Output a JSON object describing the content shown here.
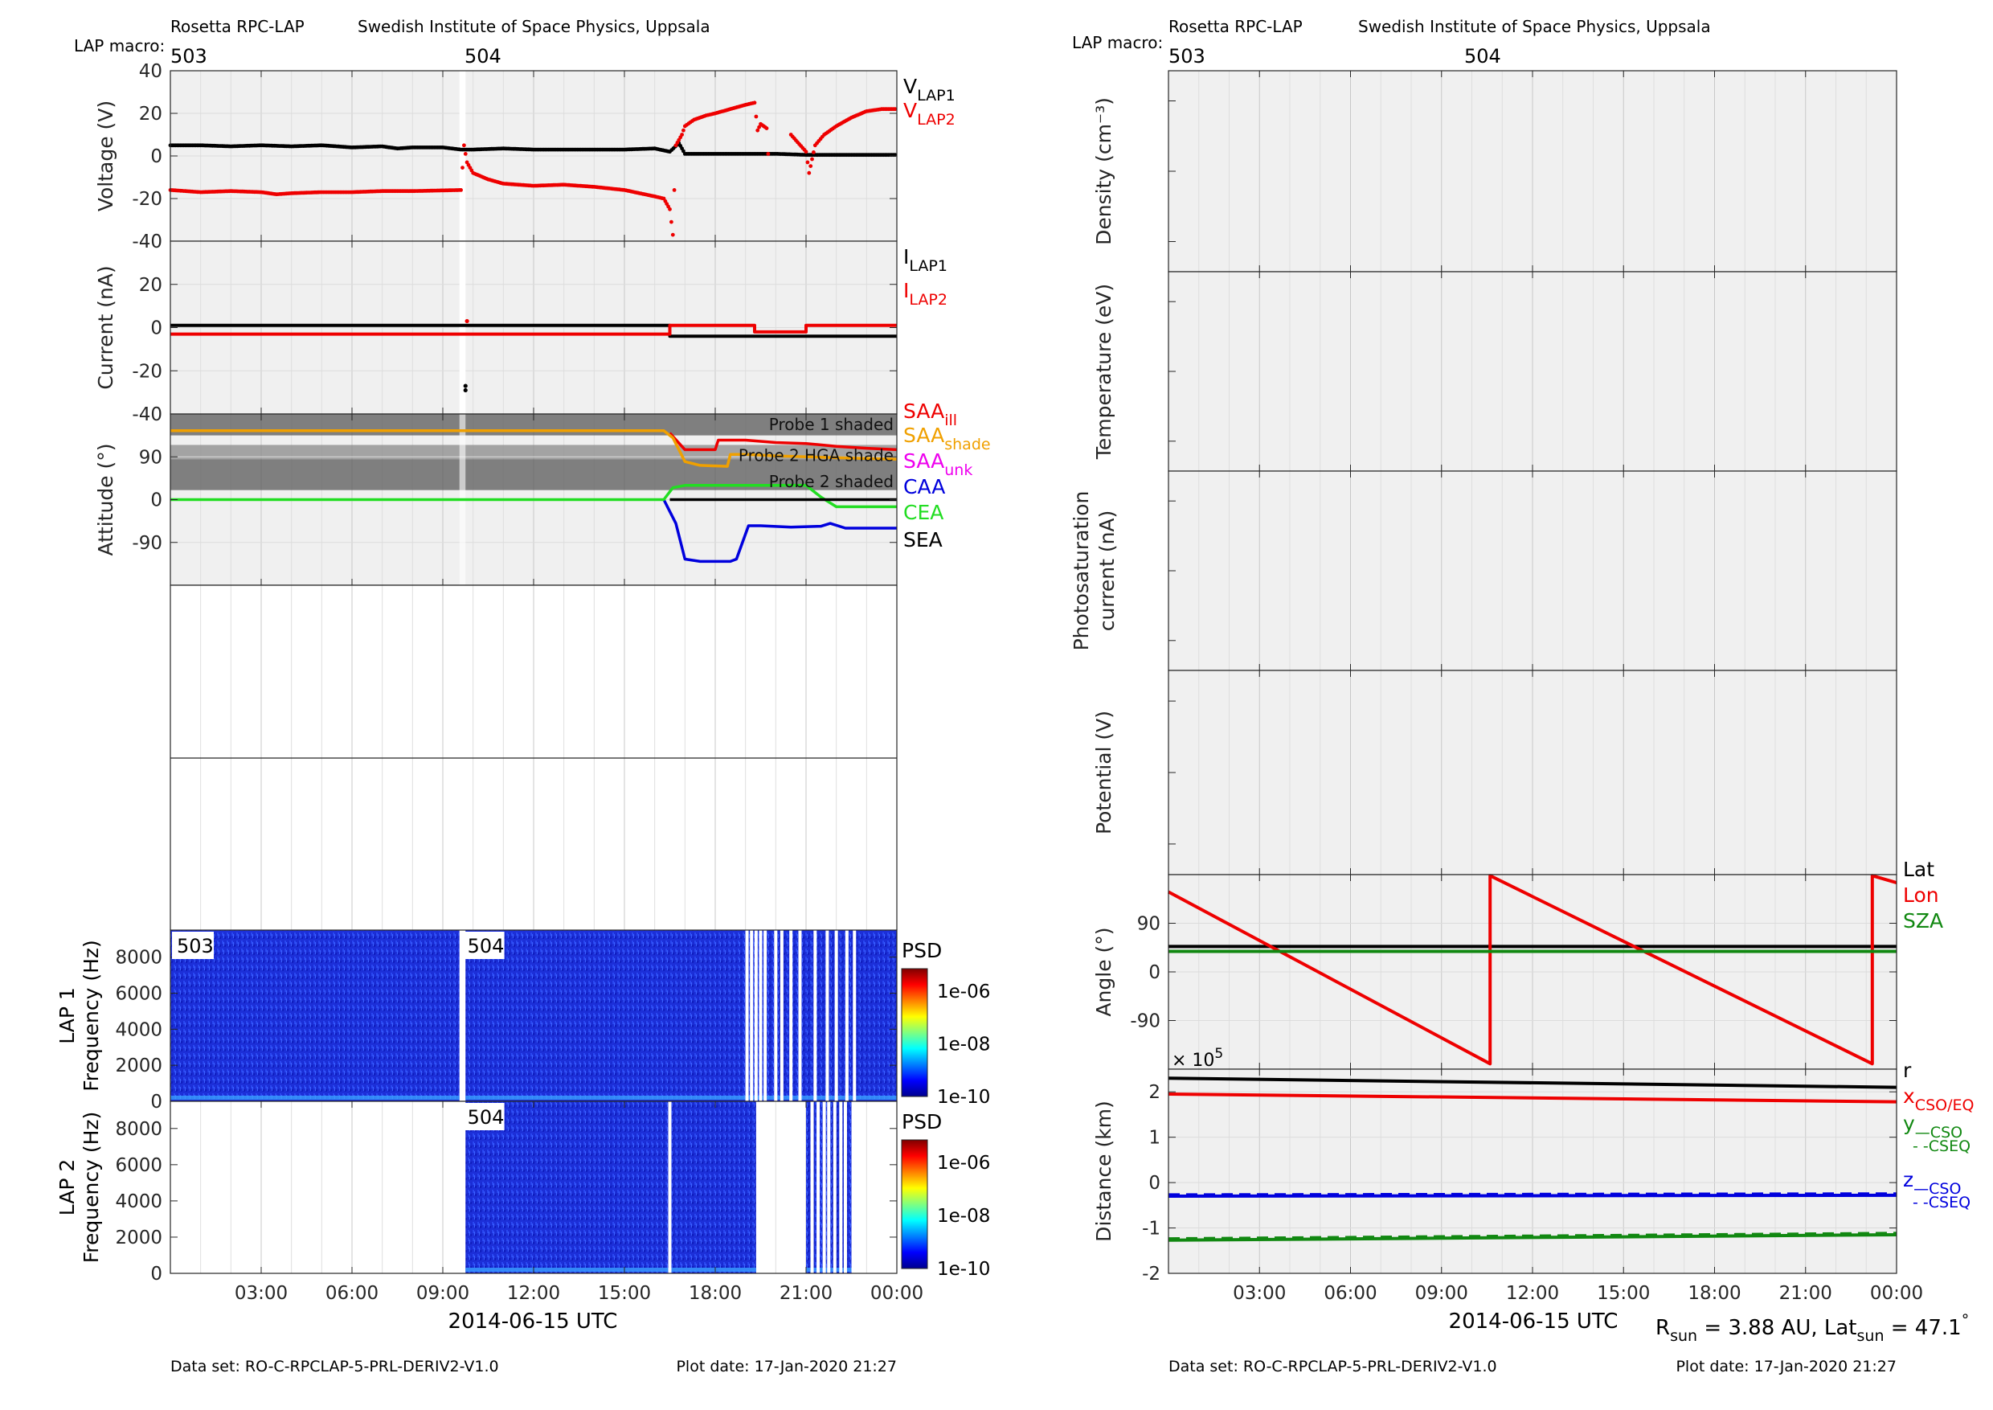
{
  "left": {
    "header": {
      "instrument": "Rosetta RPC-LAP",
      "institute": "Swedish Institute of Space Physics, Uppsala",
      "macro_label": "LAP macro:"
    },
    "macros": [
      {
        "id": "503",
        "t": 0.0
      },
      {
        "id": "504",
        "t": 9.6
      }
    ],
    "xlabel": "2014-06-15 UTC",
    "dataset": "Data set: RO-C-RPCLAP-5-PRL-DERIV2-V1.0",
    "plot_date": "Plot date: 17-Jan-2020 21:27"
  },
  "right": {
    "header": {
      "instrument": "Rosetta RPC-LAP",
      "institute": "Swedish Institute of Space Physics, Uppsala",
      "macro_label": "LAP macro:"
    },
    "macros": [
      {
        "id": "503",
        "t": 0.0
      },
      {
        "id": "504",
        "t": 9.6
      }
    ],
    "xlabel": "2014-06-15 UTC",
    "dataset": "Data set: RO-C-RPCLAP-5-PRL-DERIV2-V1.0",
    "plot_date": "Plot date: 17-Jan-2020 21:27",
    "footer_note": {
      "r_base": "R",
      "r_sub": "sun",
      "r_val": " = 3.88 AU, Lat",
      "lat_sub": "sun",
      "lat_val": " = 47.1",
      "deg": "°"
    }
  },
  "chart_data": [
    {
      "type": "scatter",
      "name_key": "voltage",
      "ylabel": "Voltage (V)",
      "ylim": [
        -40,
        40
      ],
      "yticks": [
        -40,
        -20,
        0,
        20,
        40
      ],
      "xlim": [
        0,
        24
      ],
      "xticks": [
        3,
        6,
        9,
        12,
        15,
        18,
        21,
        24
      ],
      "xticklabels": [
        "03:00",
        "06:00",
        "09:00",
        "12:00",
        "15:00",
        "18:00",
        "21:00",
        "00:00"
      ],
      "grid": true,
      "series": [
        {
          "name": "VLAP1",
          "label_base": "V",
          "label_sub": "LAP1",
          "color": "#000000",
          "points": [
            [
              0,
              5
            ],
            [
              1,
              5
            ],
            [
              2,
              4.5
            ],
            [
              3,
              5
            ],
            [
              4,
              4.5
            ],
            [
              5,
              5
            ],
            [
              6,
              4
            ],
            [
              7,
              4.5
            ],
            [
              7.5,
              3.5
            ],
            [
              8,
              4
            ],
            [
              9,
              4
            ],
            [
              9.6,
              3
            ],
            [
              10,
              3
            ],
            [
              11,
              3.5
            ],
            [
              12,
              3
            ],
            [
              13,
              3
            ],
            [
              14,
              3
            ],
            [
              15,
              3
            ],
            [
              16,
              3.5
            ],
            [
              16.5,
              2
            ],
            [
              16.8,
              6
            ],
            [
              17,
              1
            ],
            [
              18,
              1
            ],
            [
              19,
              1
            ],
            [
              20,
              1
            ],
            [
              21,
              0.5
            ],
            [
              22,
              0.5
            ],
            [
              23,
              0.5
            ],
            [
              24,
              0.5
            ]
          ]
        },
        {
          "name": "VLAP2",
          "label_base": "V",
          "label_sub": "LAP2",
          "color": "#ee0000",
          "points": [
            [
              0,
              -16
            ],
            [
              1,
              -17
            ],
            [
              2,
              -16.5
            ],
            [
              3,
              -17
            ],
            [
              3.5,
              -18
            ],
            [
              4,
              -17.5
            ],
            [
              5,
              -17
            ],
            [
              6,
              -17
            ],
            [
              7,
              -16.5
            ],
            [
              8,
              -16.5
            ],
            [
              9.6,
              -16
            ],
            [
              9.7,
              5
            ],
            [
              9.8,
              -3
            ],
            [
              10,
              -8
            ],
            [
              10.5,
              -11
            ],
            [
              11,
              -13
            ],
            [
              12,
              -14
            ],
            [
              13,
              -13.5
            ],
            [
              14,
              -14.5
            ],
            [
              15,
              -16
            ],
            [
              16,
              -19
            ],
            [
              16.3,
              -20
            ],
            [
              16.5,
              -25
            ],
            [
              16.6,
              -37
            ],
            [
              16.7,
              5
            ],
            [
              16.9,
              10
            ],
            [
              17,
              14
            ],
            [
              17.3,
              17
            ],
            [
              17.7,
              19
            ],
            [
              18,
              20
            ],
            [
              18.5,
              22
            ],
            [
              19,
              24
            ],
            [
              19.3,
              25
            ],
            [
              19.4,
              12
            ],
            [
              19.5,
              15
            ],
            [
              19.6,
              14
            ],
            [
              19.7,
              13
            ],
            [
              19.8,
              -11
            ],
            [
              20.5,
              10
            ],
            [
              21,
              2
            ],
            [
              21.1,
              -8
            ],
            [
              21.3,
              5
            ],
            [
              21.6,
              10
            ],
            [
              22,
              14
            ],
            [
              22.5,
              18
            ],
            [
              23,
              21
            ],
            [
              23.5,
              22
            ],
            [
              24,
              22
            ]
          ]
        }
      ]
    },
    {
      "type": "line",
      "name_key": "current",
      "ylabel": "Current (nA)",
      "ylim": [
        -40,
        40
      ],
      "yticks": [
        -40,
        -20,
        0,
        20
      ],
      "xlim": [
        0,
        24
      ],
      "xticks": [
        3,
        6,
        9,
        12,
        15,
        18,
        21,
        24
      ],
      "grid": true,
      "series": [
        {
          "name": "ILAP1",
          "label_base": "I",
          "label_sub": "LAP1",
          "color": "#000000",
          "points": [
            [
              0,
              1
            ],
            [
              9.6,
              1
            ],
            [
              16.5,
              1
            ],
            [
              16.5,
              -4
            ],
            [
              24,
              -4
            ]
          ]
        },
        {
          "name": "ILAP2",
          "label_base": "I",
          "label_sub": "LAP2",
          "color": "#ee0000",
          "points": [
            [
              0,
              -3
            ],
            [
              9.6,
              -3
            ],
            [
              16.5,
              -3
            ],
            [
              16.5,
              1
            ],
            [
              19.3,
              1
            ],
            [
              19.3,
              -2
            ],
            [
              21,
              -2
            ],
            [
              21,
              1
            ],
            [
              24,
              1
            ]
          ]
        }
      ],
      "extra_points": [
        [
          9.75,
          -27
        ],
        [
          9.75,
          -29
        ],
        [
          9.8,
          3
        ]
      ]
    },
    {
      "type": "line",
      "name_key": "attitude",
      "ylabel": "Attitude (°)",
      "ylim": [
        -180,
        180
      ],
      "yticks": [
        -90,
        0,
        90
      ],
      "xlim": [
        0,
        24
      ],
      "xticks": [
        3,
        6,
        9,
        12,
        15,
        18,
        21,
        24
      ],
      "grid": true,
      "bands": [
        {
          "label": "Probe 1 shaded",
          "y0": 135,
          "y1": 180,
          "color": "#5a5a5a"
        },
        {
          "label": "Probe 2 HGA shade",
          "y0": 85,
          "y1": 115,
          "color": "#8a8a8a"
        },
        {
          "label": "Probe 2 shaded",
          "y0": 20,
          "y1": 85,
          "color": "#5a5a5a"
        }
      ],
      "series": [
        {
          "name": "SAAill",
          "label_base": "SAA",
          "label_sub": "ill",
          "color": "#ee0000",
          "points": [
            [
              16.5,
              140
            ],
            [
              17,
              105
            ],
            [
              18,
              105
            ],
            [
              18.1,
              125
            ],
            [
              19,
              125
            ],
            [
              20,
              120
            ],
            [
              21,
              118
            ],
            [
              22,
              112
            ],
            [
              23,
              108
            ],
            [
              24,
              105
            ]
          ]
        },
        {
          "name": "SAAshade",
          "label_base": "SAA",
          "label_sub": "shade",
          "color": "#f0a000",
          "points": [
            [
              0,
              145
            ],
            [
              16.3,
              145
            ],
            [
              16.6,
              130
            ],
            [
              17,
              80
            ],
            [
              17.5,
              72
            ],
            [
              18.4,
              70
            ],
            [
              18.5,
              95
            ],
            [
              19,
              95
            ],
            [
              20,
              92
            ],
            [
              22,
              88
            ],
            [
              24,
              85
            ]
          ]
        },
        {
          "name": "SAAunk",
          "label_base": "SAA",
          "label_sub": "unk",
          "color": "#ee00ee",
          "points": []
        },
        {
          "name": "CAA",
          "label_base": "CAA",
          "label_sub": "",
          "color": "#0000dd",
          "points": [
            [
              16.3,
              0
            ],
            [
              16.7,
              -50
            ],
            [
              17,
              -125
            ],
            [
              17.5,
              -130
            ],
            [
              18.5,
              -130
            ],
            [
              18.7,
              -125
            ],
            [
              19.1,
              -55
            ],
            [
              19.5,
              -55
            ],
            [
              20.5,
              -58
            ],
            [
              21.5,
              -56
            ],
            [
              21.8,
              -50
            ],
            [
              22.3,
              -60
            ],
            [
              24,
              -60
            ]
          ]
        },
        {
          "name": "CEA",
          "label_base": "CEA",
          "label_sub": "",
          "color": "#22dd22",
          "points": [
            [
              0,
              0
            ],
            [
              16.3,
              0
            ],
            [
              16.6,
              25
            ],
            [
              17,
              30
            ],
            [
              21,
              30
            ],
            [
              21.5,
              5
            ],
            [
              22,
              -15
            ],
            [
              24,
              -15
            ]
          ]
        },
        {
          "name": "SEA",
          "label_base": "SEA",
          "label_sub": "",
          "color": "#000000",
          "points": [
            [
              16.5,
              0
            ],
            [
              24,
              0
            ]
          ]
        }
      ]
    },
    {
      "type": "heatmap",
      "name_key": "lap1_psd",
      "panel_title": "LAP 1",
      "ylabel": "Frequency (Hz)",
      "ylim": [
        0,
        9500
      ],
      "yticks": [
        0,
        2000,
        4000,
        6000,
        8000
      ],
      "xlim": [
        0,
        24
      ],
      "colorbar": {
        "title": "PSD",
        "ticks": [
          "1e-10",
          "1e-08",
          "1e-06"
        ]
      },
      "data_intervals": [
        [
          0,
          9.55
        ],
        [
          9.75,
          24
        ]
      ],
      "white_stripes": [
        19.05,
        19.2,
        19.35,
        19.5,
        19.65,
        20,
        20.2,
        20.5,
        20.8,
        21.3,
        21.7,
        22,
        22.35,
        22.6
      ],
      "macro_labels": [
        {
          "id": "503",
          "t": 0.0
        },
        {
          "id": "504",
          "t": 9.6
        }
      ]
    },
    {
      "type": "heatmap",
      "name_key": "lap2_psd",
      "panel_title": "LAP 2",
      "ylabel": "Frequency (Hz)",
      "ylim": [
        0,
        9500
      ],
      "yticks": [
        0,
        2000,
        4000,
        6000,
        8000
      ],
      "xlim": [
        0,
        24
      ],
      "colorbar": {
        "title": "PSD",
        "ticks": [
          "1e-10",
          "1e-08",
          "1e-06"
        ]
      },
      "data_intervals": [
        [
          9.75,
          19.35
        ],
        [
          21.0,
          22.5
        ]
      ],
      "white_stripes": [
        16.5,
        21.2,
        21.4,
        21.6,
        21.75,
        21.95,
        22.15,
        22.3
      ],
      "macro_labels": [
        {
          "id": "504",
          "t": 9.6
        }
      ]
    },
    {
      "type": "line",
      "name_key": "density",
      "ylabel": "Density (cm⁻³)",
      "xlim": [
        0,
        24
      ],
      "grid": true,
      "series": []
    },
    {
      "type": "line",
      "name_key": "temperature",
      "ylabel": "Temperature (eV)",
      "xlim": [
        0,
        24
      ],
      "grid": true,
      "series": []
    },
    {
      "type": "line",
      "name_key": "photosat",
      "ylabel": "Photosaturation",
      "ylabel2": "current (nA)",
      "xlim": [
        0,
        24
      ],
      "grid": true,
      "series": []
    },
    {
      "type": "line",
      "name_key": "potential",
      "ylabel": "Potential (V)",
      "xlim": [
        0,
        24
      ],
      "grid": true,
      "series": []
    },
    {
      "type": "line",
      "name_key": "angle",
      "ylabel": "Angle (°)",
      "ylim": [
        -180,
        180
      ],
      "yticks": [
        -90,
        0,
        90
      ],
      "xlim": [
        0,
        24
      ],
      "xticks": [
        3,
        6,
        9,
        12,
        15,
        18,
        21,
        24
      ],
      "grid": true,
      "series": [
        {
          "name": "Lat",
          "label_base": "Lat",
          "label_sub": "",
          "color": "#000000",
          "points": [
            [
              0,
              47
            ],
            [
              24,
              47
            ]
          ]
        },
        {
          "name": "Lon",
          "label_base": "Lon",
          "label_sub": "",
          "color": "#ee0000",
          "points": [
            [
              0,
              148
            ],
            [
              10.6,
              -170
            ],
            [
              10.6,
              178
            ],
            [
              23.2,
              -170
            ],
            [
              23.2,
              178
            ],
            [
              24,
              165
            ]
          ]
        },
        {
          "name": "SZA",
          "label_base": "SZA",
          "label_sub": "",
          "color": "#118811",
          "points": [
            [
              0,
              38
            ],
            [
              24,
              38
            ]
          ]
        }
      ]
    },
    {
      "type": "line",
      "name_key": "distance",
      "ylabel": "Distance (km)",
      "multiplier_base": "× 10",
      "multiplier_exp": "5",
      "ylim": [
        -2,
        2.5
      ],
      "yticks": [
        -2,
        -1,
        0,
        1,
        2
      ],
      "xlim": [
        0,
        24
      ],
      "xticks": [
        3,
        6,
        9,
        12,
        15,
        18,
        21,
        24
      ],
      "xticklabels": [
        "03:00",
        "06:00",
        "09:00",
        "12:00",
        "15:00",
        "18:00",
        "21:00",
        "00:00"
      ],
      "grid": true,
      "series": [
        {
          "name": "r",
          "label_base": "r",
          "label_sub": "",
          "color": "#000000",
          "points": [
            [
              0,
              2.3
            ],
            [
              24,
              2.1
            ]
          ]
        },
        {
          "name": "x",
          "label_base": "x",
          "label_sub": "CSO/EQ",
          "color": "#ee0000",
          "points": [
            [
              0,
              1.95
            ],
            [
              24,
              1.78
            ]
          ]
        },
        {
          "name": "y",
          "label_base": "y",
          "label_sub": "—CSO",
          "label_extra": "- -CSEQ",
          "color": "#118811",
          "points": [
            [
              0,
              -1.27
            ],
            [
              24,
              -1.15
            ]
          ]
        },
        {
          "name": "z",
          "label_base": "z",
          "label_sub": "—CSO",
          "label_extra": "- -CSEQ",
          "color": "#0000dd",
          "points": [
            [
              0,
              -0.3
            ],
            [
              24,
              -0.28
            ]
          ]
        }
      ]
    }
  ]
}
